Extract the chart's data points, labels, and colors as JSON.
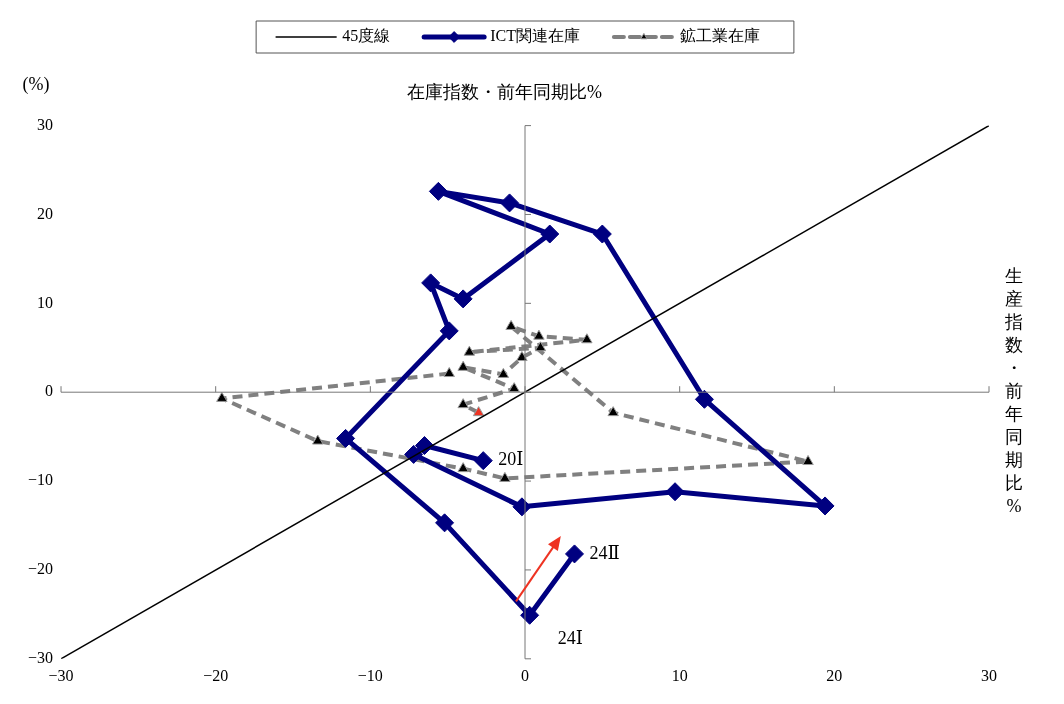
{
  "chart_data": {
    "type": "line",
    "title": "在庫指数・前年同期比%",
    "ylabel": "(%)",
    "xlabel": "生産指数・前年同期比%",
    "xlim": [
      -30,
      30
    ],
    "ylim": [
      -30,
      30
    ],
    "xticks": [
      {
        "value": -30,
        "label": "−30"
      },
      {
        "value": -20,
        "label": "−20"
      },
      {
        "value": -10,
        "label": "−10"
      },
      0,
      10,
      20,
      30
    ],
    "yticks": [
      {
        "value": -30,
        "label": "−30"
      },
      {
        "value": -20,
        "label": "−20"
      },
      {
        "value": -10,
        "label": "−10"
      },
      0,
      10,
      20,
      30
    ],
    "legend": "top",
    "series": [
      {
        "name": "45度線",
        "color": "#000000",
        "x": [
          -30,
          30
        ],
        "values": [
          -30,
          30
        ],
        "marker": "none",
        "line_style": "solid"
      },
      {
        "name": "ICT関連在庫",
        "color": "#000080",
        "marker": "diamond",
        "line_style": "solid",
        "x": [
          -2.7,
          -6.5,
          -7.2,
          -0.2,
          9.7,
          19.4,
          11.6,
          5.0,
          -1.0,
          -5.6,
          1.6,
          -4.0,
          -6.1,
          -4.9,
          -11.6,
          -5.2,
          0.3,
          3.2
        ],
        "values": [
          -7.7,
          -6.0,
          -7.0,
          -12.9,
          -11.2,
          -12.8,
          -0.8,
          17.8,
          21.3,
          22.6,
          17.8,
          10.5,
          12.3,
          6.9,
          -5.2,
          -14.7,
          -25.1,
          -18.2
        ]
      },
      {
        "name": "鉱工業在庫",
        "color": "#808080",
        "marker": "triangle",
        "line_style": "dashed",
        "colors": [
          "#000000",
          "#000000",
          "#000000",
          "#000000",
          "#000000",
          "#000000",
          "#000000",
          "#000000",
          "#000000",
          "#000000",
          "#000000",
          "#000000",
          "#000000",
          "#000000",
          "#000000",
          "#000000",
          "#000000",
          "#ee3322"
        ],
        "x": [
          -4.9,
          -19.6,
          -13.4,
          -4.0,
          -1.3,
          18.3,
          5.7,
          -0.9,
          0.9,
          4.0,
          -3.6,
          1.0,
          -0.2,
          -1.4,
          -4.0,
          -0.7,
          -4.0,
          -3.0
        ],
        "values": [
          2.1,
          -0.7,
          -5.5,
          -8.6,
          -9.7,
          -7.8,
          -2.3,
          7.4,
          6.3,
          5.9,
          4.5,
          5.0,
          3.9,
          2.0,
          2.8,
          0.4,
          -1.4,
          -2.3
        ]
      }
    ],
    "annotations": [
      {
        "text": "20Ⅰ",
        "x": -2.7,
        "y": -7.7
      },
      {
        "text": "24Ⅰ",
        "x": 0.3,
        "y": -25.1
      },
      {
        "text": "24Ⅱ",
        "x": 3.2,
        "y": -18.2
      }
    ]
  }
}
